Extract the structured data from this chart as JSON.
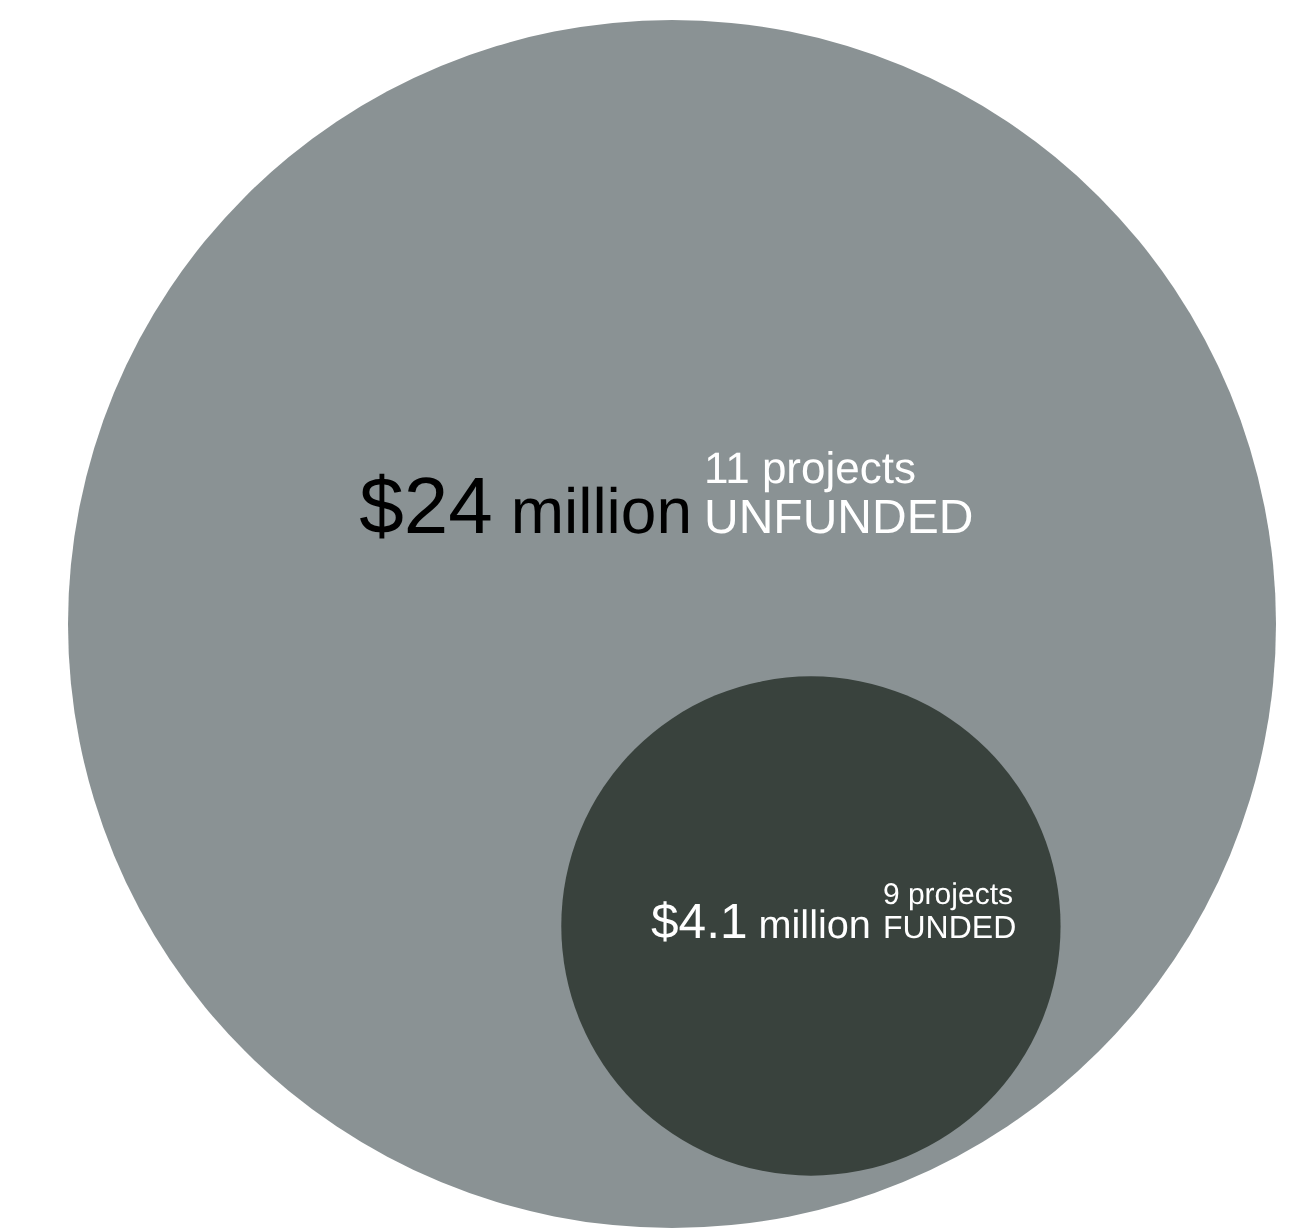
{
  "chart_data": {
    "type": "other",
    "categories": [
      "UNFUNDED",
      "FUNDED"
    ],
    "values": [
      24,
      4.1
    ],
    "colors": [
      "#8a9294",
      "#39423d"
    ],
    "value_labels": [
      "$24 million",
      "$4.1 million"
    ],
    "annotations": [
      {
        "text": "11 projects",
        "x": "UNFUNDED"
      },
      {
        "text": "9 projects",
        "x": "FUNDED"
      }
    ]
  }
}
